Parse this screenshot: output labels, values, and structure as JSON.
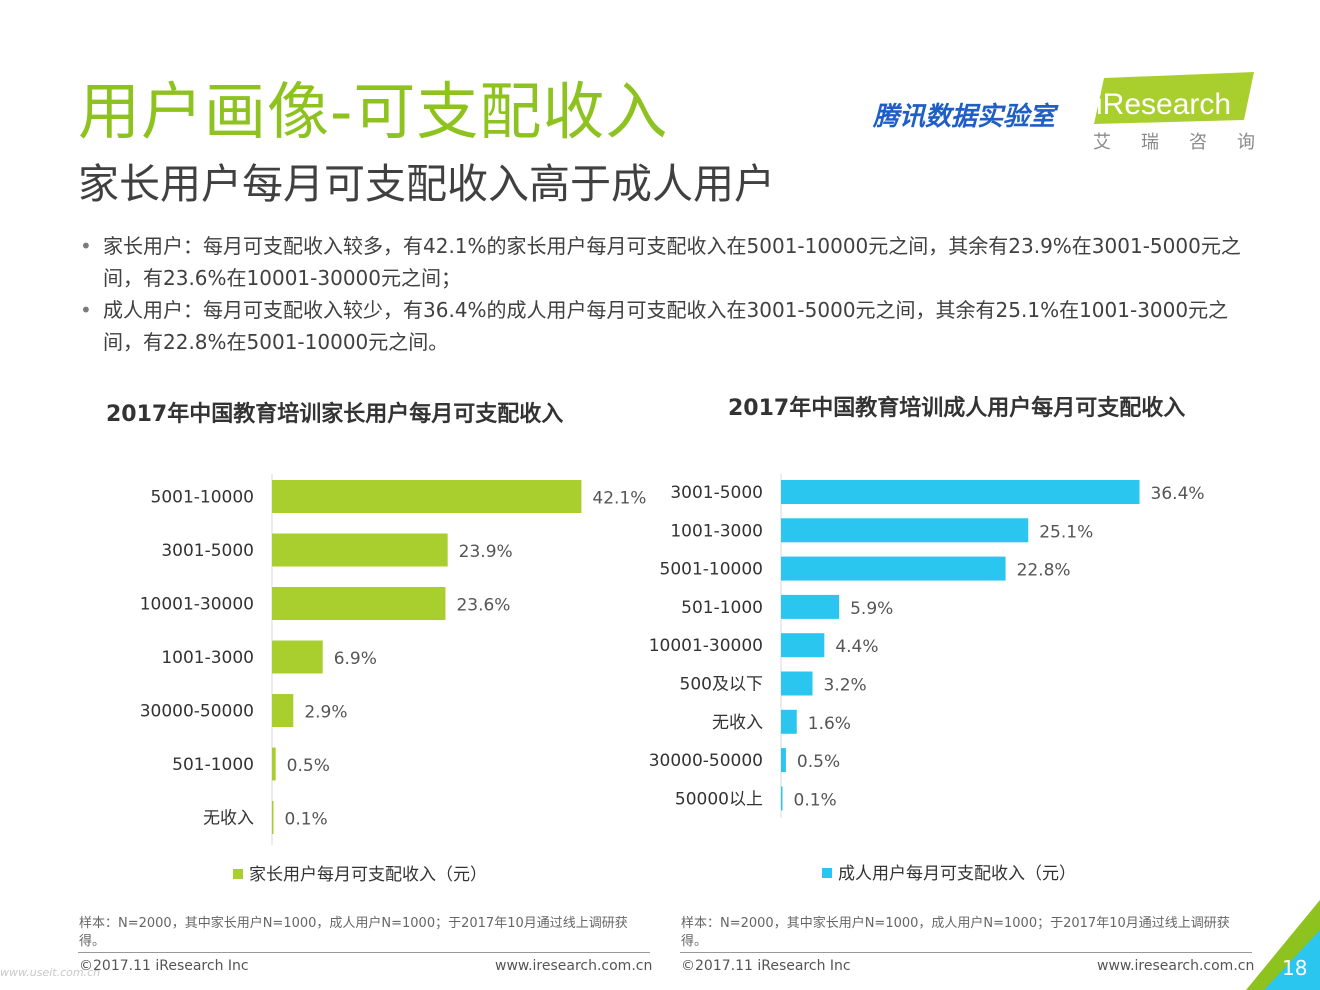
{
  "header": {
    "title": "用户画像-可支配收入",
    "subtitle": "家长用户每月可支配收入高于成人用户",
    "brand_tencent": "腾讯数据实验室",
    "brand_iresearch": "iResearch",
    "brand_iresearch_cn": "艾瑞咨询"
  },
  "bullets": [
    "家长用户：每月可支配收入较多，有42.1%的家长用户每月可支配收入在5001-10000元之间，其余有23.9%在3001-5000元之间，有23.6%在10001-30000元之间；",
    "成人用户：每月可支配收入较少，有36.4%的成人用户每月可支配收入在3001-5000元之间，其余有25.1%在1001-3000元之间，有22.8%在5001-10000元之间。"
  ],
  "chart_data": [
    {
      "type": "bar",
      "orientation": "horizontal",
      "title": "2017年中国教育培训家长用户每月可支配收入",
      "categories": [
        "5001-10000",
        "3001-5000",
        "10001-30000",
        "1001-3000",
        "30000-50000",
        "501-1000",
        "无收入"
      ],
      "series": [
        {
          "name": "家长用户每月可支配收入（元）",
          "values": [
            42.1,
            23.9,
            23.6,
            6.9,
            2.9,
            0.5,
            0.1
          ]
        }
      ],
      "value_labels": [
        "42.1%",
        "23.9%",
        "23.6%",
        "6.9%",
        "2.9%",
        "0.5%",
        "0.1%"
      ],
      "color": "#a9cf2e",
      "legend": "bottom",
      "grid": false
    },
    {
      "type": "bar",
      "orientation": "horizontal",
      "title": "2017年中国教育培训成人用户每月可支配收入",
      "categories": [
        "3001-5000",
        "1001-3000",
        "5001-10000",
        "501-1000",
        "10001-30000",
        "500及以下",
        "无收入",
        "30000-50000",
        "50000以上"
      ],
      "series": [
        {
          "name": "成人用户每月可支配收入（元）",
          "values": [
            36.4,
            25.1,
            22.8,
            5.9,
            4.4,
            3.2,
            1.6,
            0.5,
            0.1
          ]
        }
      ],
      "value_labels": [
        "36.4%",
        "25.1%",
        "22.8%",
        "5.9%",
        "4.4%",
        "3.2%",
        "1.6%",
        "0.5%",
        "0.1%"
      ],
      "color": "#2bc6ef",
      "legend": "bottom",
      "grid": false
    }
  ],
  "footer": {
    "note": "样本：N=2000，其中家长用户N=1000，成人用户N=1000；于2017年10月通过线上调研获得。",
    "copyright": "©2017.11 iResearch Inc",
    "url": "www.iresearch.com.cn",
    "page": "18"
  }
}
